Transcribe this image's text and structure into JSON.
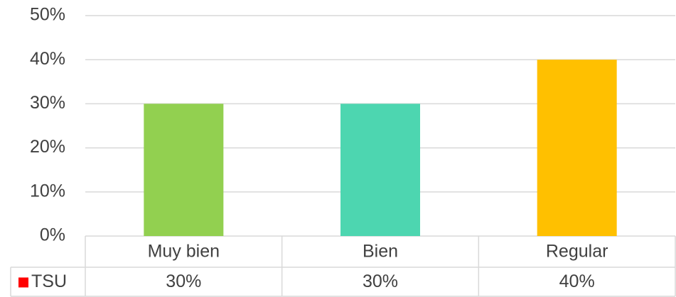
{
  "chart_data": {
    "type": "bar",
    "categories": [
      "Muy bien",
      "Bien",
      "Regular"
    ],
    "series": [
      {
        "name": "TSU",
        "color": "#ff0000",
        "values": [
          30,
          30,
          40
        ],
        "value_labels": [
          "30%",
          "30%",
          "40%"
        ],
        "bar_colors": [
          "#92d050",
          "#4dd6b0",
          "#ffc000"
        ]
      }
    ],
    "ylim": [
      0,
      50
    ],
    "yticks": [
      {
        "value": 0,
        "label": "0%"
      },
      {
        "value": 10,
        "label": "10%"
      },
      {
        "value": 20,
        "label": "20%"
      },
      {
        "value": 30,
        "label": "30%"
      },
      {
        "value": 40,
        "label": "40%"
      },
      {
        "value": 50,
        "label": "50%"
      }
    ],
    "grid": true,
    "data_table": true
  }
}
